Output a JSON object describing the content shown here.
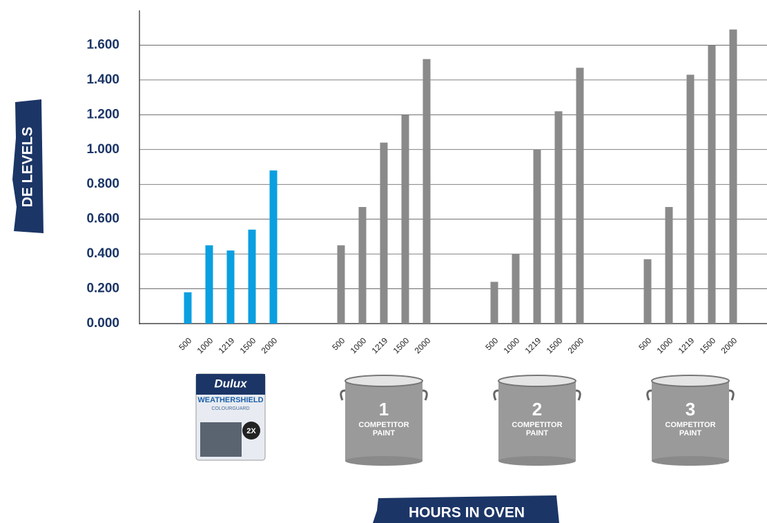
{
  "chart_data": {
    "type": "bar",
    "ylabel": "DE LEVELS",
    "xlabel": "HOURS IN OVEN",
    "ylim": [
      0,
      1.8
    ],
    "yticks": [
      {
        "value": 0,
        "label": "0.000"
      },
      {
        "value": 0.2,
        "label": "0.200"
      },
      {
        "value": 0.4,
        "label": "0.400"
      },
      {
        "value": 0.6,
        "label": "0.600"
      },
      {
        "value": 0.8,
        "label": "0.800"
      },
      {
        "value": 1,
        "label": "1.000"
      },
      {
        "value": 1.2,
        "label": "1.200"
      },
      {
        "value": 1.4,
        "label": "1.400"
      },
      {
        "value": 1.6,
        "label": "1.600"
      }
    ],
    "grid": true,
    "groups": [
      {
        "categories": [
          "500",
          "1000",
          "1219",
          "1500",
          "2000"
        ],
        "color": "#0a9fe0",
        "values": [
          0.18,
          0.45,
          0.42,
          0.54,
          0.88
        ],
        "product": {
          "brand": "Dulux",
          "name": "WEATHERSHIELD",
          "subname": "COLOURGUARD",
          "badge": "2X"
        }
      },
      {
        "categories": [
          "500",
          "1000",
          "1219",
          "1500",
          "2000"
        ],
        "color": "#8a8a8a",
        "values": [
          0.45,
          0.67,
          1.04,
          1.2,
          1.52
        ],
        "product": {
          "number": "1",
          "lines": [
            "COMPETITOR",
            "PAINT"
          ]
        }
      },
      {
        "categories": [
          "500",
          "1000",
          "1219",
          "1500",
          "2000"
        ],
        "color": "#8a8a8a",
        "values": [
          0.24,
          0.4,
          1.0,
          1.22,
          1.47
        ],
        "product": {
          "number": "2",
          "lines": [
            "COMPETITOR",
            "PAINT"
          ]
        }
      },
      {
        "categories": [
          "500",
          "1000",
          "1219",
          "1500",
          "2000"
        ],
        "color": "#8a8a8a",
        "values": [
          0.37,
          0.67,
          1.43,
          1.6,
          1.69
        ],
        "product": {
          "number": "3",
          "lines": [
            "COMPETITOR",
            "PAINT"
          ]
        }
      }
    ]
  }
}
